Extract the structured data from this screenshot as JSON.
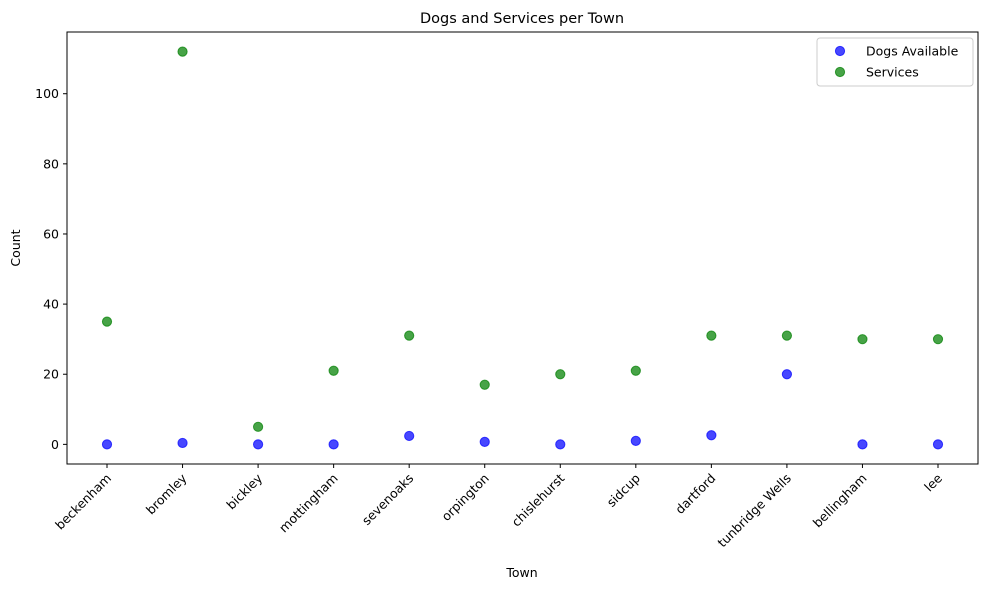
{
  "chart_data": {
    "type": "scatter",
    "title": "Dogs and Services per Town",
    "xlabel": "Town",
    "ylabel": "Count",
    "categories": [
      "beckenham",
      "bromley",
      "bickley",
      "mottingham",
      "sevenoaks",
      "orpington",
      "chislehurst",
      "sidcup",
      "dartford",
      "tunbridge Wells",
      "bellingham",
      "lee"
    ],
    "series": [
      {
        "name": "Dogs Available",
        "color": "#0000ff",
        "values": [
          0,
          0.4,
          0,
          0,
          2.4,
          0.7,
          0,
          1,
          2.6,
          20,
          0,
          0
        ]
      },
      {
        "name": "Services",
        "color": "#008000",
        "values": [
          35,
          112,
          5,
          21,
          31,
          17,
          20,
          21,
          31,
          31,
          30,
          30
        ]
      }
    ],
    "ylim": [
      -5.6,
      117.6
    ],
    "yticks": [
      0,
      20,
      40,
      60,
      80,
      100
    ],
    "grid": false,
    "legend_position": "top-right"
  }
}
